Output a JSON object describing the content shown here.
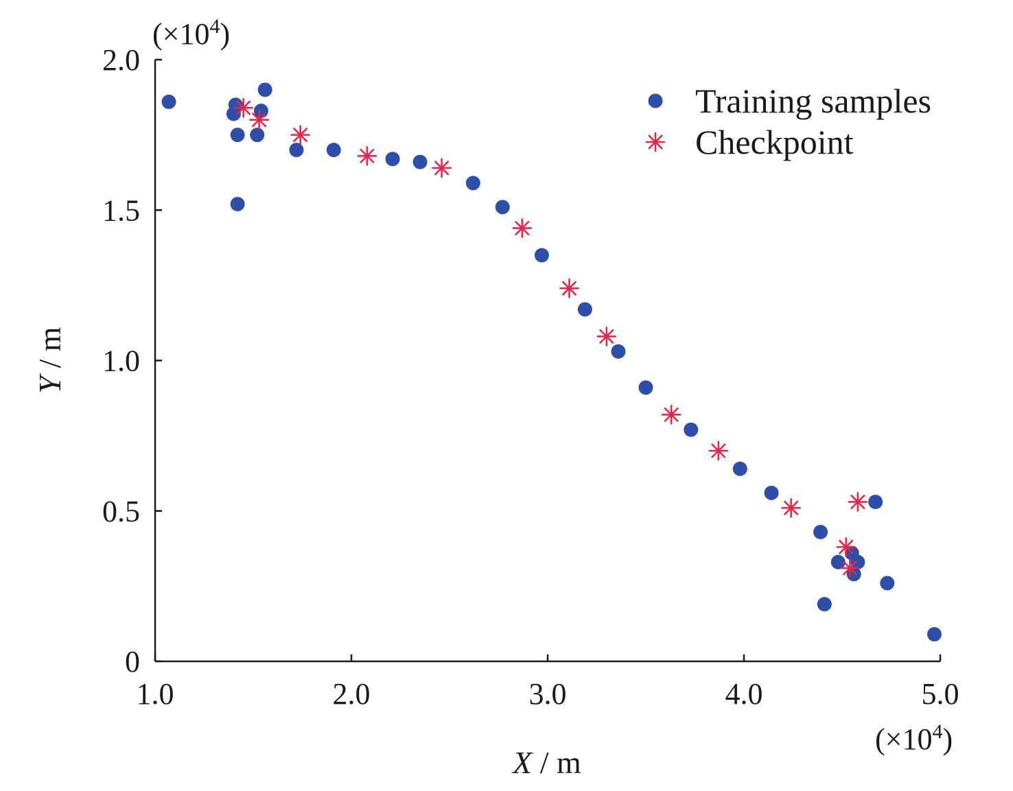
{
  "chart_data": {
    "type": "scatter",
    "xlabel_var": "X",
    "xlabel_unit": " / m",
    "ylabel_var": "Y",
    "ylabel_unit": " / m",
    "x_multiplier": "(×10",
    "y_multiplier": "(×10",
    "multiplier_exp": "4",
    "multiplier_close": ")",
    "xlim": [
      1.0,
      5.0
    ],
    "ylim": [
      0,
      2.0
    ],
    "x_ticks": [
      1.0,
      2.0,
      3.0,
      4.0,
      5.0
    ],
    "x_tick_labels": [
      "1.0",
      "2.0",
      "3.0",
      "4.0",
      "5.0"
    ],
    "y_ticks": [
      0,
      0.5,
      1.0,
      1.5,
      2.0
    ],
    "y_tick_labels": [
      "0",
      "0.5",
      "1.0",
      "1.5",
      "2.0"
    ],
    "grid": false,
    "legend_position": "top-right",
    "series": [
      {
        "name": "Training samples",
        "marker": "circle",
        "color": "#2f4eaa",
        "points": [
          [
            1.07,
            1.86
          ],
          [
            1.41,
            1.85
          ],
          [
            1.4,
            1.82
          ],
          [
            1.42,
            1.75
          ],
          [
            1.42,
            1.52
          ],
          [
            1.54,
            1.83
          ],
          [
            1.56,
            1.9
          ],
          [
            1.52,
            1.75
          ],
          [
            1.72,
            1.7
          ],
          [
            1.91,
            1.7
          ],
          [
            2.21,
            1.67
          ],
          [
            2.35,
            1.66
          ],
          [
            2.62,
            1.59
          ],
          [
            2.77,
            1.51
          ],
          [
            2.97,
            1.35
          ],
          [
            3.19,
            1.17
          ],
          [
            3.36,
            1.03
          ],
          [
            3.5,
            0.91
          ],
          [
            3.73,
            0.77
          ],
          [
            3.98,
            0.64
          ],
          [
            4.14,
            0.56
          ],
          [
            4.39,
            0.43
          ],
          [
            4.48,
            0.33
          ],
          [
            4.55,
            0.36
          ],
          [
            4.56,
            0.29
          ],
          [
            4.58,
            0.33
          ],
          [
            4.41,
            0.19
          ],
          [
            4.67,
            0.53
          ],
          [
            4.73,
            0.26
          ],
          [
            4.97,
            0.09
          ]
        ]
      },
      {
        "name": "Checkpoint",
        "marker": "asterisk",
        "color": "#e0284a",
        "points": [
          [
            1.45,
            1.84
          ],
          [
            1.53,
            1.8
          ],
          [
            1.74,
            1.75
          ],
          [
            2.08,
            1.68
          ],
          [
            2.46,
            1.64
          ],
          [
            2.87,
            1.44
          ],
          [
            3.11,
            1.24
          ],
          [
            3.3,
            1.08
          ],
          [
            3.63,
            0.82
          ],
          [
            3.87,
            0.7
          ],
          [
            4.24,
            0.51
          ],
          [
            4.52,
            0.38
          ],
          [
            4.54,
            0.31
          ],
          [
            4.58,
            0.53
          ]
        ]
      }
    ]
  }
}
